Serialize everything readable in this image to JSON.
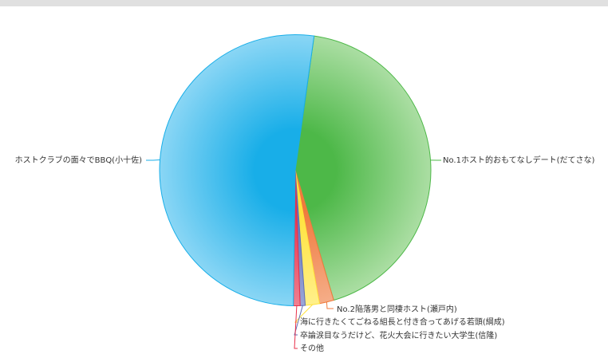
{
  "chart_data": {
    "type": "pie",
    "start_angle_deg": 8,
    "slices": [
      {
        "label": "No.1ホスト的おもてなしデート(だてさな)",
        "value": 43.2,
        "color": "#4db848",
        "light": "#abdea3"
      },
      {
        "label": "No.2陥落男と同棲ホスト(瀬戸内)",
        "value": 1.7,
        "color": "#f07a3c",
        "light": "#f5ad88"
      },
      {
        "label": "海に行きたくてごねる組長と付き合ってあげる若頭(綱成)",
        "value": 1.7,
        "color": "#ffe23a",
        "light": "#fff08a"
      },
      {
        "label": "卒論涙目なうだけど、花火大会に行きたい大学生(信隆)",
        "value": 0.6,
        "color": "#5f6fb8",
        "light": "#9aa6d8"
      },
      {
        "label": "その他",
        "value": 0.8,
        "color": "#e8304a",
        "light": "#f08090"
      },
      {
        "label": "ホストクラブの面々でBBQ(小十佐)",
        "value": 52.0,
        "color": "#18aee8",
        "light": "#8ad6f5"
      }
    ],
    "legend": "none"
  }
}
